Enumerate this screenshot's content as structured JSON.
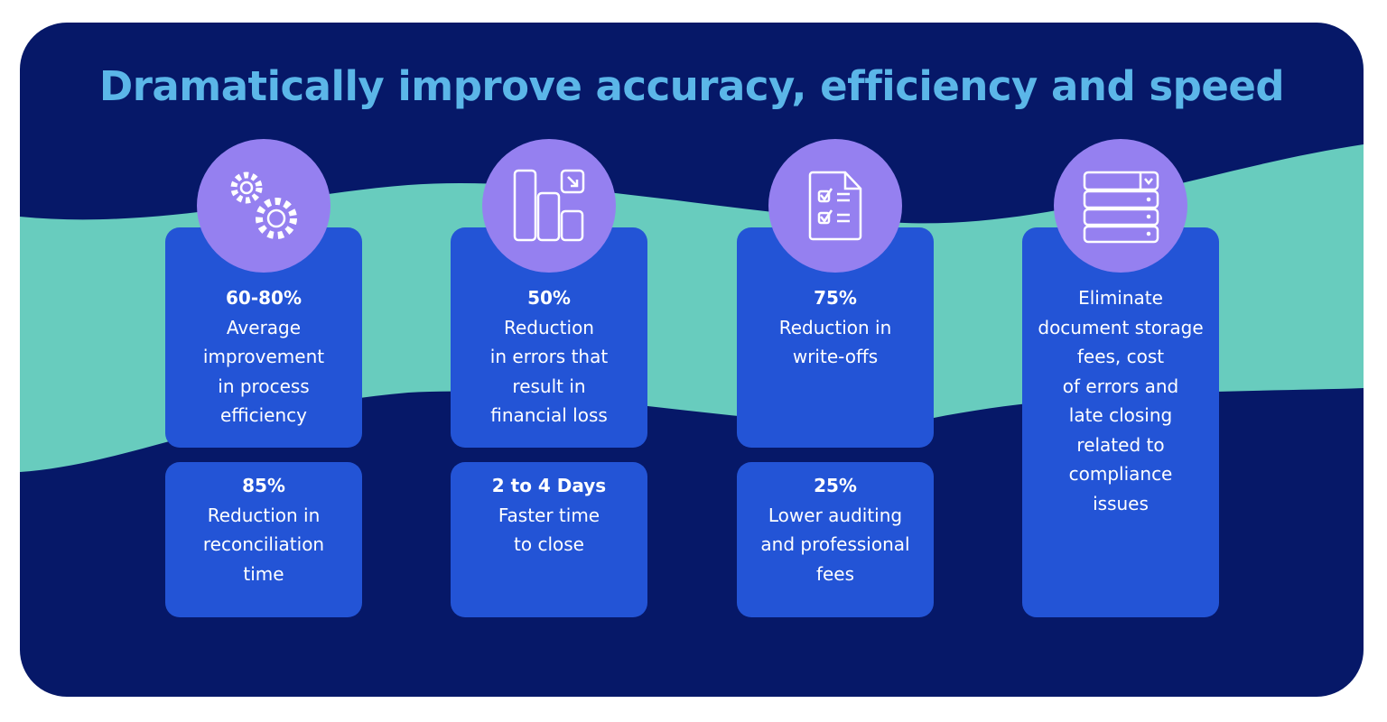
{
  "title": "Dramatically improve accuracy, efficiency and speed",
  "colors": {
    "background": "#061868",
    "wave": "#68CCBE",
    "card": "#2354D6",
    "icon_circle": "#9580F0",
    "title": "#5BB6E8"
  },
  "columns": [
    {
      "icon": "gears-icon",
      "top": {
        "value": "60-80%",
        "lines": [
          "Average",
          "improvement",
          "in process",
          "efficiency"
        ]
      },
      "bottom": {
        "value": "85%",
        "lines": [
          "Reduction in",
          "reconciliation",
          "time"
        ]
      }
    },
    {
      "icon": "bar-chart-decrease-icon",
      "top": {
        "value": "50%",
        "lines": [
          "Reduction",
          "in errors that",
          "result in",
          "financial loss"
        ]
      },
      "bottom": {
        "value": "2 to 4 Days",
        "lines": [
          "Faster time",
          "to close"
        ]
      }
    },
    {
      "icon": "checklist-document-icon",
      "top": {
        "value": "75%",
        "lines": [
          "Reduction in",
          "write-offs"
        ]
      },
      "bottom": {
        "value": "25%",
        "lines": [
          "Lower auditing",
          "and professional",
          "fees"
        ]
      }
    },
    {
      "icon": "server-storage-icon",
      "single": {
        "lines": [
          "Eliminate",
          "document storage",
          "fees, cost",
          "of errors and",
          "late closing",
          "related to",
          "compliance",
          "issues"
        ]
      }
    }
  ]
}
